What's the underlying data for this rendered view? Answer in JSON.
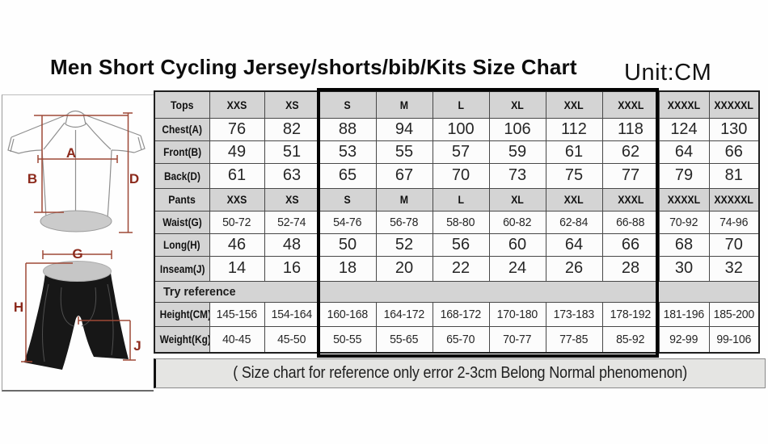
{
  "chart_data": {
    "type": "table",
    "title": "Men Short Cycling Jersey/shorts/bib/Kits Size Chart",
    "unit_label": "Unit:CM",
    "unit": "CM",
    "sizes": [
      "XXS",
      "XS",
      "S",
      "M",
      "L",
      "XL",
      "XXL",
      "XXXL",
      "XXXXL",
      "XXXXXL"
    ],
    "highlighted_sizes": [
      "S",
      "M",
      "L",
      "XL",
      "XXL",
      "XXXL"
    ],
    "sections": [
      {
        "header": "Tops",
        "rows": [
          {
            "label": "Chest(A)",
            "values": [
              76,
              82,
              88,
              94,
              100,
              106,
              112,
              118,
              124,
              130
            ]
          },
          {
            "label": "Front(B)",
            "values": [
              49,
              51,
              53,
              55,
              57,
              59,
              61,
              62,
              64,
              66
            ]
          },
          {
            "label": "Back(D)",
            "values": [
              61,
              63,
              65,
              67,
              70,
              73,
              75,
              77,
              79,
              81
            ]
          }
        ]
      },
      {
        "header": "Pants",
        "rows": [
          {
            "label": "Waist(G)",
            "values": [
              "50-72",
              "52-74",
              "54-76",
              "56-78",
              "58-80",
              "60-82",
              "62-84",
              "66-88",
              "70-92",
              "74-96"
            ]
          },
          {
            "label": "Long(H)",
            "values": [
              46,
              48,
              50,
              52,
              56,
              60,
              64,
              66,
              68,
              70
            ]
          },
          {
            "label": "Inseam(J)",
            "values": [
              14,
              16,
              18,
              20,
              22,
              24,
              26,
              28,
              30,
              32
            ]
          }
        ]
      },
      {
        "span": "Try reference",
        "rows": [
          {
            "label": "Height(CM)",
            "values": [
              "145-156",
              "154-164",
              "160-168",
              "164-172",
              "168-172",
              "170-180",
              "173-183",
              "178-192",
              "181-196",
              "185-200"
            ]
          },
          {
            "label": "Weight(Kg)",
            "values": [
              "40-45",
              "45-50",
              "50-55",
              "55-65",
              "65-70",
              "70-77",
              "77-85",
              "85-92",
              "92-99",
              "99-106"
            ]
          }
        ]
      }
    ],
    "measurement_labels": {
      "chest": "A",
      "front": "B",
      "back": "D",
      "waist": "G",
      "long": "H",
      "inseam": "J"
    },
    "note": "( Size chart for reference only  error 2-3cm  Belong Normal phenomenon)"
  },
  "colors": {
    "measurement_line": "#9d4937",
    "measurement_letter": "#8c2a1c",
    "header_cell": "#d4d4d4",
    "highlight_border": "#040404",
    "note_background": "#e5e5e3"
  }
}
